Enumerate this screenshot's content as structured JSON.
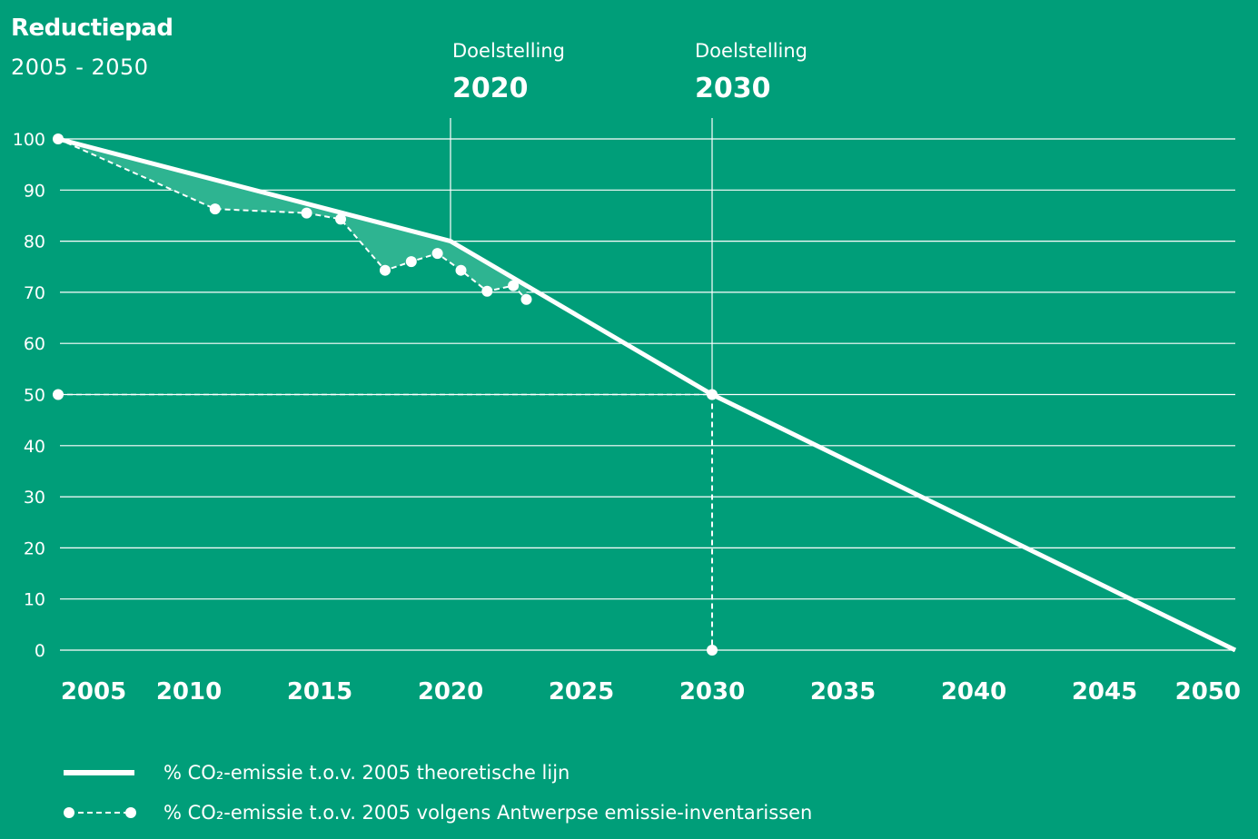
{
  "header": {
    "title": "Reductiepad",
    "subtitle": "2005 - 2050"
  },
  "targets": [
    {
      "label": "Doelstelling",
      "year": "2020"
    },
    {
      "label": "Doelstelling",
      "year": "2030"
    }
  ],
  "legend": {
    "theoretical": "% CO₂-emissie t.o.v. 2005 theoretische lijn",
    "inventory": "% CO₂-emissie t.o.v. 2005 volgens Antwerpse emissie-inventarissen"
  },
  "colors": {
    "background": "#009e79",
    "foreground": "#ffffff",
    "area_fill": "#2eb491"
  },
  "chart_data": {
    "type": "line",
    "title": "Reductiepad",
    "subtitle": "2005 - 2050",
    "xlim": [
      2005,
      2050
    ],
    "ylim": [
      0,
      100
    ],
    "x_ticks": [
      2005,
      2010,
      2015,
      2020,
      2025,
      2030,
      2035,
      2040,
      2045,
      2050
    ],
    "y_ticks": [
      0,
      10,
      20,
      30,
      40,
      50,
      60,
      70,
      80,
      90,
      100
    ],
    "grid": true,
    "legend_position": "bottom-left",
    "series": [
      {
        "name": "% CO₂-emissie t.o.v. 2005 theoretische lijn",
        "style": "solid",
        "x": [
          2005,
          2020,
          2030,
          2050
        ],
        "y": [
          100,
          80,
          50,
          0
        ]
      },
      {
        "name": "% CO₂-emissie t.o.v. 2005 volgens Antwerpse emissie-inventarissen",
        "style": "dashed-markers",
        "x": [
          2005,
          2011,
          2014.5,
          2015.8,
          2017.5,
          2018.5,
          2019.5,
          2020.4,
          2021.4,
          2022.4,
          2022.9
        ],
        "y": [
          100,
          86.3,
          85.5,
          84.3,
          74.3,
          76,
          77.6,
          74.3,
          70.2,
          71.3,
          68.6
        ]
      }
    ],
    "target_lines": [
      {
        "x": 2020,
        "label": "Doelstelling",
        "year": "2020"
      },
      {
        "x": 2030,
        "label": "Doelstelling",
        "year": "2030"
      }
    ],
    "target_reference": {
      "x": 2030,
      "y": 50
    }
  }
}
